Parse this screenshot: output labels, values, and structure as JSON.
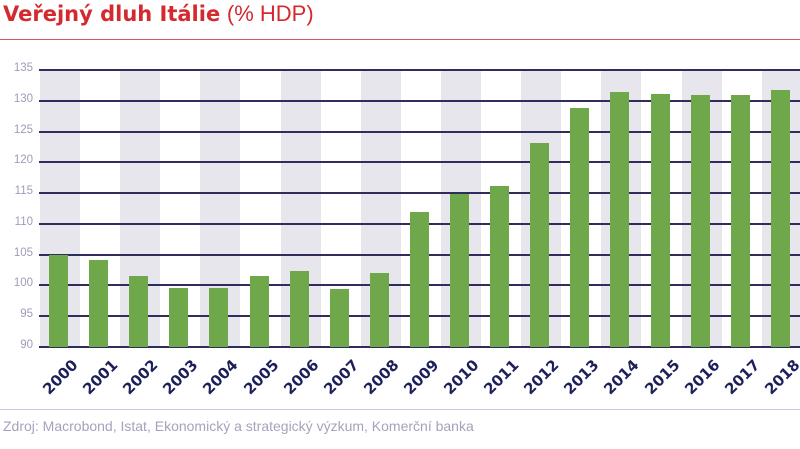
{
  "header": {
    "title": "Veřejný dluh Itálie",
    "subtitle": "(% HDP)"
  },
  "footer": {
    "source": "Zdroj: Macrobond, Istat, Ekonomický a strategický výzkum, Komerční banka"
  },
  "colors": {
    "title": "#d42a2f",
    "bar": "#6fa74b",
    "grid": "#2f2d5c",
    "band": "#e7e6ed",
    "ytick": "#9d9db8",
    "xtick": "#1d1f5a"
  },
  "chart_data": {
    "type": "bar",
    "title": "Veřejný dluh Itálie (% HDP)",
    "xlabel": "",
    "ylabel": "% HDP",
    "ylim": [
      90,
      135
    ],
    "yticks": [
      90,
      95,
      100,
      105,
      110,
      115,
      120,
      125,
      130,
      135
    ],
    "grid": true,
    "legend": null,
    "categories": [
      "2000",
      "2001",
      "2002",
      "2003",
      "2004",
      "2005",
      "2006",
      "2007",
      "2008",
      "2009",
      "2010",
      "2011",
      "2012",
      "2013",
      "2014",
      "2015",
      "2016",
      "2017",
      "2018"
    ],
    "values": [
      105.0,
      104.2,
      101.6,
      99.6,
      99.6,
      101.5,
      102.3,
      99.5,
      102.0,
      112.0,
      114.9,
      116.2,
      123.1,
      128.9,
      131.4,
      131.1,
      131.0,
      130.9,
      131.8
    ]
  }
}
